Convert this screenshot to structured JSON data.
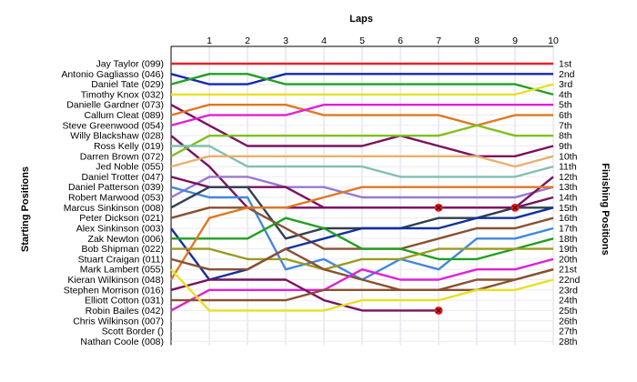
{
  "chart_data": {
    "type": "line",
    "title": "",
    "xlabel": "Laps",
    "ylabel_left": "Starting Positions",
    "ylabel_right": "Finishing Positions",
    "x": [
      0,
      1,
      2,
      3,
      4,
      5,
      6,
      7,
      8,
      9,
      10
    ],
    "x_tick_labels": [
      "1",
      "2",
      "3",
      "4",
      "5",
      "6",
      "7",
      "8",
      "9",
      "10"
    ],
    "xlim": [
      0,
      10
    ],
    "ylim": [
      1,
      28
    ],
    "y_inverted": true,
    "grid": true,
    "starting_positions": [
      "Jay Taylor (099)",
      "Antonio Gagliasso (046)",
      "Daniel Tate (029)",
      "Timothy Knox (032)",
      "Danielle Gardner (073)",
      "Callum Cleat (089)",
      "Steve Greenwood (054)",
      "Willy Blackshaw (028)",
      "Ross Kelly (019)",
      "Darren Brown (072)",
      "Jed Noble (055)",
      "Daniel Trotter (047)",
      "Daniel Patterson (039)",
      "Robert Marwood (053)",
      "Marcus Sinkinson (008)",
      "Peter Dickson (021)",
      "Alex Sinkinson (003)",
      "Zak Newton (006)",
      "Bob Shipman (022)",
      "Stuart Craigan (011)",
      "Mark Lambert (055)",
      "Kieran Wilkinson (048)",
      "Stephen Morrison (016)",
      "Elliott Cotton (031)",
      "Robin Bailes (042)",
      "Chris Wilkinson (007)",
      "Scott Border ()",
      "Nathan Coole (008)"
    ],
    "finishing_positions": [
      "1st",
      "2nd",
      "3rd",
      "4th",
      "5th",
      "6th",
      "7th",
      "8th",
      "9th",
      "10th",
      "11th",
      "12th",
      "13th",
      "14th",
      "15th",
      "16th",
      "17th",
      "18th",
      "19th",
      "20th",
      "21st",
      "22nd",
      "23rd",
      "24th",
      "25th",
      "26th",
      "27th",
      "28th"
    ],
    "series": [
      {
        "color": "#e8202a",
        "positions": [
          1,
          1,
          1,
          1,
          1,
          1,
          1,
          1,
          1,
          1,
          1
        ]
      },
      {
        "color": "#1428b4",
        "positions": [
          2,
          3,
          3,
          2,
          2,
          2,
          2,
          2,
          2,
          2,
          2
        ]
      },
      {
        "color": "#20a020",
        "positions": [
          3,
          2,
          2,
          3,
          3,
          3,
          3,
          3,
          3,
          3,
          4
        ]
      },
      {
        "color": "#e8e020",
        "positions": [
          4,
          4,
          4,
          4,
          4,
          4,
          4,
          4,
          4,
          4,
          3
        ]
      },
      {
        "color": "#7a1060",
        "positions": [
          5,
          7,
          9,
          9,
          9,
          9,
          8,
          9,
          10,
          10,
          9
        ]
      },
      {
        "color": "#e07820",
        "positions": [
          6,
          5,
          5,
          5,
          6,
          6,
          6,
          6,
          7,
          6,
          6
        ]
      },
      {
        "color": "#e020d8",
        "positions": [
          7,
          6,
          6,
          6,
          5,
          5,
          5,
          5,
          5,
          5,
          5
        ]
      },
      {
        "color": "#7a1060",
        "positions": [
          8,
          11,
          15,
          15,
          15,
          15,
          15,
          15,
          15,
          15,
          14
        ]
      },
      {
        "color": "#80c020",
        "positions": [
          10,
          8,
          8,
          8,
          8,
          8,
          8,
          8,
          7,
          8,
          8
        ]
      },
      {
        "color": "#80c0b0",
        "positions": [
          9,
          9,
          11,
          11,
          11,
          11,
          12,
          12,
          12,
          12,
          11
        ]
      },
      {
        "color": "#e8b070",
        "positions": [
          11,
          10,
          10,
          10,
          10,
          10,
          10,
          10,
          10,
          11,
          10
        ]
      },
      {
        "color": "#9878d0",
        "positions": [
          14,
          12,
          12,
          13,
          13,
          14,
          14,
          14,
          14,
          14,
          13
        ]
      },
      {
        "color": "#7a1060",
        "positions": [
          12,
          13,
          13,
          13,
          15,
          15,
          15,
          15,
          15,
          15,
          12
        ]
      },
      {
        "color": "#4088e0",
        "positions": [
          13,
          14,
          14,
          21,
          20,
          22,
          20,
          21,
          18,
          18,
          17
        ]
      },
      {
        "color": "#304050",
        "positions": [
          15,
          13,
          13,
          18,
          17,
          17,
          17,
          16,
          16,
          15,
          15
        ]
      },
      {
        "color": "#8a5030",
        "positions": [
          16,
          15,
          15,
          17,
          19,
          19,
          19,
          18,
          17,
          17,
          16
        ]
      },
      {
        "color": "#1430a0",
        "positions": [
          17,
          22,
          21,
          19,
          18,
          17,
          17,
          17,
          16,
          16,
          15
        ]
      },
      {
        "color": "#20a020",
        "positions": [
          18,
          18,
          18,
          16,
          17,
          19,
          19,
          20,
          20,
          19,
          18
        ]
      },
      {
        "color": "#9a9a20",
        "positions": [
          19,
          19,
          20,
          20,
          21,
          20,
          20,
          19,
          19,
          19,
          19
        ]
      },
      {
        "color": "#e07820",
        "positions": [
          22,
          16,
          15,
          15,
          14,
          13,
          13,
          13,
          13,
          13,
          13
        ]
      },
      {
        "color": "#8a5030",
        "positions": [
          20,
          21,
          21,
          19,
          21,
          22,
          23,
          23,
          23,
          22,
          21
        ]
      },
      {
        "color": "#e020d8",
        "positions": [
          25,
          23,
          23,
          23,
          23,
          21,
          22,
          22,
          21,
          21,
          20
        ]
      },
      {
        "color": "#7a1060",
        "positions": [
          23,
          22,
          22,
          22,
          24,
          25,
          25,
          25
        ]
      },
      {
        "color": "#8a5030",
        "positions": [
          24,
          24,
          24,
          24,
          23,
          23,
          23,
          23,
          22,
          22,
          21
        ]
      },
      {
        "color": "#e8e020",
        "positions": [
          21,
          25,
          25,
          25,
          25,
          24,
          24,
          24,
          23,
          23,
          22
        ]
      }
    ],
    "retirements": [
      {
        "lap": 7,
        "position": 15
      },
      {
        "lap": 9,
        "position": 15
      },
      {
        "lap": 7,
        "position": 25
      }
    ]
  }
}
